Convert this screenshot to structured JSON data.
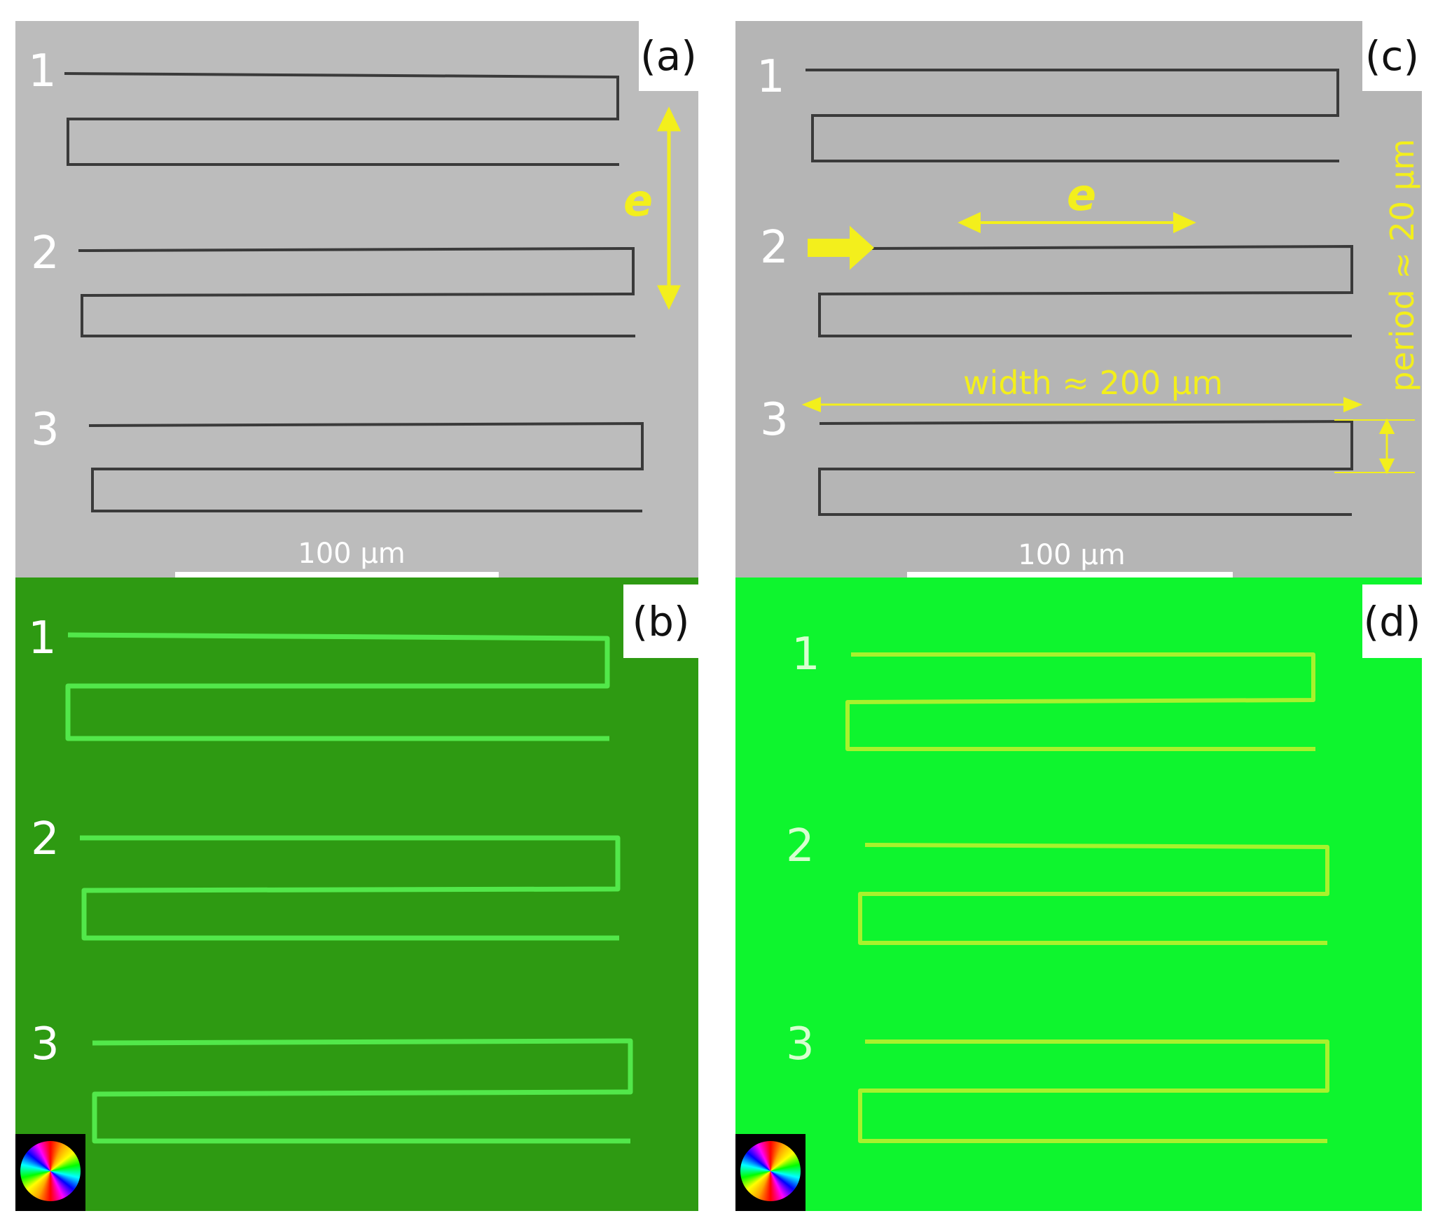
{
  "panels": {
    "a": {
      "label": "(a)",
      "rows": [
        "1",
        "2",
        "3"
      ],
      "scale_text": "100 µm",
      "annotation": "e"
    },
    "b": {
      "label": "(b)",
      "rows": [
        "1",
        "2",
        "3"
      ]
    },
    "c": {
      "label": "(c)",
      "rows": [
        "1",
        "2",
        "3"
      ],
      "scale_text": "100 µm",
      "annotation_e": "e",
      "width_text": "width ≈ 200 µm",
      "period_text": "period ≈ 20 µm"
    },
    "d": {
      "label": "(d)",
      "rows": [
        "1",
        "2",
        "3"
      ]
    }
  },
  "colors": {
    "microscope_bg": "#bdbdbd",
    "trace_dark": "#3a3a3a",
    "panel_b_bg": "#2e9a12",
    "panel_d_bg": "#0ef52e",
    "trace_green": "#52e84a",
    "trace_yellowgreen": "#a8f22c",
    "annotation": "#f3ef1c"
  }
}
